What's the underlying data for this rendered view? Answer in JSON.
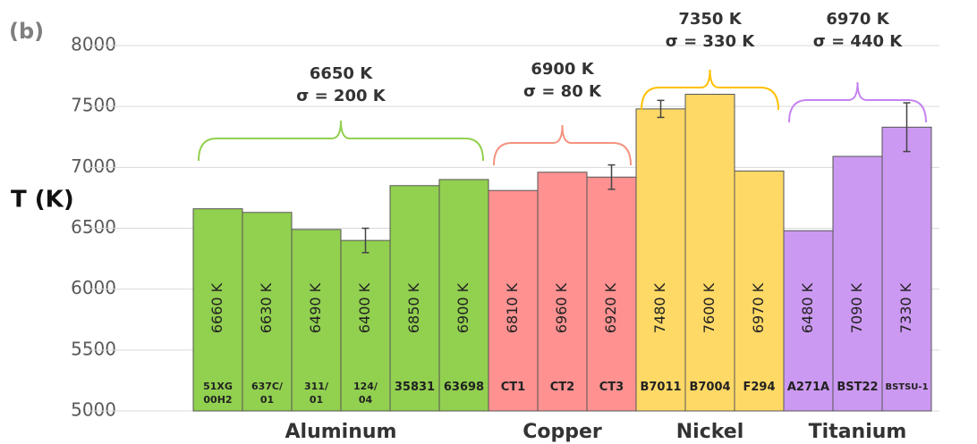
{
  "chart_data": {
    "type": "bar",
    "panel_label": "(b)",
    "y_label": "T (K)",
    "ylim": [
      5000,
      8000
    ],
    "yticks": [
      5000,
      5500,
      6000,
      6500,
      7000,
      7500,
      8000
    ],
    "grid": true,
    "series": [
      {
        "name": "Aluminum",
        "color": "#92d050",
        "bracket_color": "#92d050",
        "annotation": [
          "6650 K",
          "σ = 200 K"
        ],
        "categories": [
          "51XG\n00H2",
          "637C/\n01",
          "311/\n01",
          "124/\n04",
          "35831",
          "63698"
        ],
        "values": [
          6660,
          6630,
          6490,
          6400,
          6850,
          6900
        ],
        "value_labels": [
          "6660 K",
          "6630 K",
          "6490 K",
          "6400 K",
          "6850 K",
          "6900 K"
        ],
        "errors": [
          null,
          null,
          null,
          100,
          null,
          null
        ]
      },
      {
        "name": "Copper",
        "color": "#ff9191",
        "bracket_color": "#f4937f",
        "annotation": [
          "6900 K",
          "σ = 80 K"
        ],
        "categories": [
          "CT1",
          "CT2",
          "CT3"
        ],
        "values": [
          6810,
          6960,
          6920
        ],
        "value_labels": [
          "6810 K",
          "6960 K",
          "6920 K"
        ],
        "errors": [
          null,
          null,
          100
        ]
      },
      {
        "name": "Nickel",
        "color": "#ffd966",
        "bracket_color": "#ffc000",
        "annotation": [
          "7350 K",
          "σ  = 330 K"
        ],
        "categories": [
          "B7011",
          "B7004",
          "F294"
        ],
        "values": [
          7480,
          7600,
          6970
        ],
        "value_labels": [
          "7480 K",
          "7600 K",
          "6970 K"
        ],
        "errors": [
          70,
          null,
          null
        ]
      },
      {
        "name": "Titanium",
        "color": "#cc99f2",
        "bracket_color": "#c583f0",
        "annotation": [
          "6970 K",
          "σ = 440 K"
        ],
        "categories": [
          "A271A",
          "BST22",
          "BSTSU-1"
        ],
        "values": [
          6480,
          7090,
          7330
        ],
        "value_labels": [
          "6480 K",
          "7090 K",
          "7330 K"
        ],
        "errors": [
          null,
          null,
          200
        ]
      }
    ]
  }
}
